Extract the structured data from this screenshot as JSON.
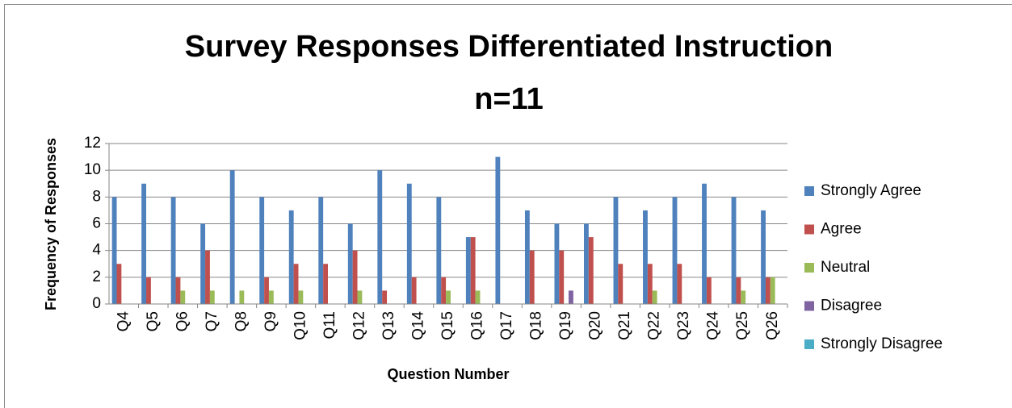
{
  "chart_data": {
    "type": "bar",
    "title": "Survey Responses Differentiated Instruction",
    "subtitle": "n=11",
    "x_label": "Question Number",
    "y_label": "Frequency of Responses",
    "categories": [
      "Q4",
      "Q5",
      "Q6",
      "Q7",
      "Q8",
      "Q9",
      "Q10",
      "Q11",
      "Q12",
      "Q13",
      "Q14",
      "Q15",
      "Q16",
      "Q17",
      "Q18",
      "Q19",
      "Q20",
      "Q21",
      "Q22",
      "Q23",
      "Q24",
      "Q25",
      "Q26"
    ],
    "series": [
      {
        "name": "Strongly Agree",
        "color": "#4f81bd",
        "values": [
          8,
          9,
          8,
          6,
          10,
          8,
          7,
          8,
          6,
          10,
          9,
          8,
          5,
          11,
          7,
          6,
          6,
          8,
          7,
          8,
          9,
          8,
          7
        ]
      },
      {
        "name": "Agree",
        "color": "#c0504d",
        "values": [
          3,
          2,
          2,
          4,
          0,
          2,
          3,
          3,
          4,
          1,
          2,
          2,
          5,
          0,
          4,
          4,
          5,
          3,
          3,
          3,
          2,
          2,
          2
        ]
      },
      {
        "name": "Neutral",
        "color": "#9bbb59",
        "values": [
          0,
          0,
          1,
          1,
          1,
          1,
          1,
          0,
          1,
          0,
          0,
          1,
          1,
          0,
          0,
          0,
          0,
          0,
          1,
          0,
          0,
          1,
          2
        ]
      },
      {
        "name": "Disagree",
        "color": "#8064a2",
        "values": [
          0,
          0,
          0,
          0,
          0,
          0,
          0,
          0,
          0,
          0,
          0,
          0,
          0,
          0,
          0,
          1,
          0,
          0,
          0,
          0,
          0,
          0,
          0
        ]
      },
      {
        "name": "Strongly Disagree",
        "color": "#4bacc6",
        "values": [
          0,
          0,
          0,
          0,
          0,
          0,
          0,
          0,
          0,
          0,
          0,
          0,
          0,
          0,
          0,
          0,
          0,
          0,
          0,
          0,
          0,
          0,
          0
        ]
      }
    ],
    "ylim": [
      0,
      12
    ],
    "yticks": [
      0,
      2,
      4,
      6,
      8,
      10,
      12
    ],
    "grid": true,
    "legend": "right"
  }
}
